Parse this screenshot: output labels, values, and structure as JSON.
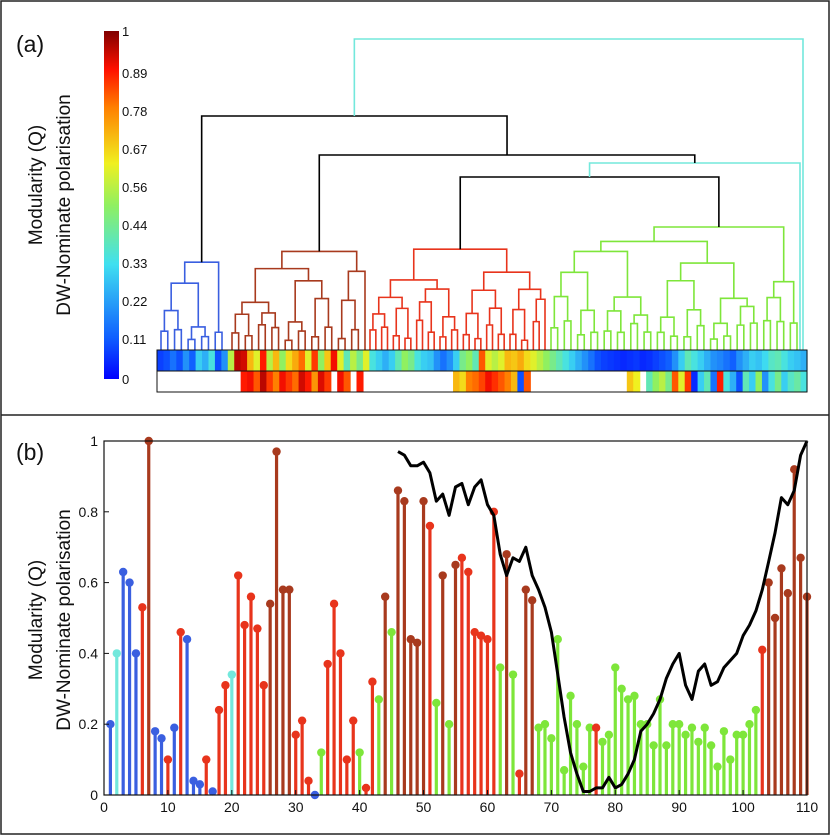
{
  "figure": {
    "panel_a_label": "(a)",
    "panel_b_label": "(b)"
  },
  "chart_data": [
    {
      "type": "heatmap",
      "title": "(a)",
      "ylabel_line1": "Modularity (Q)",
      "ylabel_line2": "DW-Nominate polarisation",
      "colorbar": {
        "min": 0,
        "max": 1,
        "ticks": [
          "0",
          "0.11",
          "0.22",
          "0.33",
          "0.44",
          "0.56",
          "0.67",
          "0.78",
          "0.89",
          "1"
        ]
      },
      "dendrogram_clusters": [
        {
          "name": "blue",
          "color": "#3a5fe0",
          "leaves": 10
        },
        {
          "name": "brown",
          "color": "#a83a1e",
          "leaves": 21
        },
        {
          "name": "red",
          "color": "#e8341c",
          "leaves": 31
        },
        {
          "name": "green",
          "color": "#7ee63a",
          "leaves": 38
        }
      ],
      "linkage_colors": {
        "top": "#73e8dc",
        "inner": "#000000"
      },
      "strip_modularity": [
        0.08,
        0.1,
        0.15,
        0.1,
        0.2,
        0.12,
        0.3,
        0.25,
        0.35,
        0.1,
        0.2,
        0.55,
        0.95,
        0.93,
        0.7,
        0.6,
        0.88,
        0.55,
        0.7,
        0.5,
        0.65,
        0.72,
        0.8,
        0.6,
        0.85,
        0.5,
        0.68,
        0.9,
        0.6,
        0.4,
        0.55,
        0.45,
        0.6,
        0.35,
        0.3,
        0.25,
        0.3,
        0.4,
        0.5,
        0.45,
        0.35,
        0.3,
        0.28,
        0.2,
        0.15,
        0.2,
        0.3,
        0.45,
        0.5,
        0.4,
        0.82,
        0.6,
        0.55,
        0.6,
        0.7,
        0.68,
        0.72,
        0.65,
        0.6,
        0.55,
        0.5,
        0.45,
        0.4,
        0.35,
        0.3,
        0.25,
        0.2,
        0.15,
        0.1,
        0.08,
        0.07,
        0.06,
        0.05,
        0.06,
        0.07,
        0.05,
        0.06,
        0.08,
        0.1,
        0.12,
        0.2,
        0.3,
        0.4,
        0.35,
        0.3,
        0.25,
        0.2,
        0.18,
        0.15,
        0.12,
        0.2,
        0.25,
        0.3,
        0.28,
        0.32,
        0.38,
        0.4,
        0.35,
        0.3,
        0.28,
        0.25
      ],
      "strip_polarisation": [
        null,
        null,
        null,
        null,
        null,
        null,
        null,
        null,
        null,
        null,
        null,
        null,
        null,
        0.88,
        0.9,
        0.82,
        0.95,
        0.85,
        0.78,
        0.9,
        0.85,
        0.8,
        0.93,
        0.88,
        0.75,
        0.92,
        0.85,
        null,
        0.9,
        0.82,
        null,
        0.88,
        null,
        null,
        null,
        null,
        null,
        null,
        null,
        null,
        null,
        null,
        null,
        null,
        null,
        null,
        0.7,
        0.65,
        0.78,
        0.8,
        0.84,
        0.9,
        0.86,
        0.82,
        0.78,
        0.7,
        0.1,
        0.82,
        null,
        null,
        null,
        null,
        null,
        null,
        null,
        null,
        null,
        null,
        null,
        null,
        null,
        null,
        null,
        0.68,
        0.62,
        null,
        0.4,
        0.5,
        0.55,
        0.45,
        0.82,
        0.6,
        0.85,
        0.05,
        0.3,
        0.4,
        0.15,
        0.88,
        0.35,
        0.25,
        0.1,
        0.4,
        0.3,
        0.5,
        0.2,
        0.35,
        0.45,
        0.3,
        0.38,
        0.42,
        0.35
      ]
    },
    {
      "type": "bar",
      "subtype": "stem",
      "title": "(b)",
      "ylabel_line1": "Modularity (Q)",
      "ylabel_line2": "DW-Nominate polarisation",
      "xlim": [
        0,
        110
      ],
      "ylim": [
        0,
        1
      ],
      "xticks": [
        "0",
        "10",
        "20",
        "30",
        "40",
        "50",
        "60",
        "70",
        "80",
        "90",
        "100",
        "110"
      ],
      "yticks": [
        "0",
        "0.2",
        "0.4",
        "0.6",
        "0.8",
        "1"
      ],
      "stem_colors": {
        "blue": "#3a5fe0",
        "cyan": "#73e8dc",
        "red": "#e8341c",
        "brown": "#a83a1e",
        "green": "#7ee63a"
      },
      "stems": [
        {
          "x": 1,
          "y": 0.2,
          "c": "blue"
        },
        {
          "x": 2,
          "y": 0.4,
          "c": "cyan"
        },
        {
          "x": 3,
          "y": 0.63,
          "c": "blue"
        },
        {
          "x": 4,
          "y": 0.6,
          "c": "blue"
        },
        {
          "x": 5,
          "y": 0.4,
          "c": "blue"
        },
        {
          "x": 6,
          "y": 0.53,
          "c": "red"
        },
        {
          "x": 7,
          "y": 1.0,
          "c": "brown"
        },
        {
          "x": 8,
          "y": 0.18,
          "c": "blue"
        },
        {
          "x": 9,
          "y": 0.16,
          "c": "blue"
        },
        {
          "x": 10,
          "y": 0.1,
          "c": "red"
        },
        {
          "x": 11,
          "y": 0.19,
          "c": "blue"
        },
        {
          "x": 12,
          "y": 0.46,
          "c": "red"
        },
        {
          "x": 13,
          "y": 0.44,
          "c": "blue"
        },
        {
          "x": 14,
          "y": 0.04,
          "c": "blue"
        },
        {
          "x": 15,
          "y": 0.03,
          "c": "blue"
        },
        {
          "x": 16,
          "y": 0.1,
          "c": "red"
        },
        {
          "x": 17,
          "y": 0.01,
          "c": "blue"
        },
        {
          "x": 18,
          "y": 0.24,
          "c": "red"
        },
        {
          "x": 19,
          "y": 0.31,
          "c": "red"
        },
        {
          "x": 20,
          "y": 0.34,
          "c": "cyan"
        },
        {
          "x": 21,
          "y": 0.62,
          "c": "red"
        },
        {
          "x": 22,
          "y": 0.48,
          "c": "red"
        },
        {
          "x": 23,
          "y": 0.56,
          "c": "red"
        },
        {
          "x": 24,
          "y": 0.47,
          "c": "red"
        },
        {
          "x": 25,
          "y": 0.31,
          "c": "red"
        },
        {
          "x": 26,
          "y": 0.54,
          "c": "brown"
        },
        {
          "x": 27,
          "y": 0.97,
          "c": "brown"
        },
        {
          "x": 28,
          "y": 0.58,
          "c": "brown"
        },
        {
          "x": 29,
          "y": 0.58,
          "c": "brown"
        },
        {
          "x": 30,
          "y": 0.17,
          "c": "red"
        },
        {
          "x": 31,
          "y": 0.21,
          "c": "red"
        },
        {
          "x": 32,
          "y": 0.04,
          "c": "red"
        },
        {
          "x": 33,
          "y": 0.0,
          "c": "blue"
        },
        {
          "x": 34,
          "y": 0.12,
          "c": "green"
        },
        {
          "x": 35,
          "y": 0.37,
          "c": "red"
        },
        {
          "x": 36,
          "y": 0.54,
          "c": "red"
        },
        {
          "x": 37,
          "y": 0.4,
          "c": "red"
        },
        {
          "x": 38,
          "y": 0.1,
          "c": "red"
        },
        {
          "x": 39,
          "y": 0.21,
          "c": "red"
        },
        {
          "x": 40,
          "y": 0.12,
          "c": "green"
        },
        {
          "x": 41,
          "y": 0.02,
          "c": "red"
        },
        {
          "x": 42,
          "y": 0.32,
          "c": "red"
        },
        {
          "x": 43,
          "y": 0.27,
          "c": "green"
        },
        {
          "x": 44,
          "y": 0.56,
          "c": "brown"
        },
        {
          "x": 45,
          "y": 0.46,
          "c": "green"
        },
        {
          "x": 46,
          "y": 0.86,
          "c": "brown"
        },
        {
          "x": 47,
          "y": 0.83,
          "c": "brown"
        },
        {
          "x": 48,
          "y": 0.44,
          "c": "brown"
        },
        {
          "x": 49,
          "y": 0.43,
          "c": "brown"
        },
        {
          "x": 50,
          "y": 0.83,
          "c": "brown"
        },
        {
          "x": 51,
          "y": 0.76,
          "c": "red"
        },
        {
          "x": 52,
          "y": 0.26,
          "c": "green"
        },
        {
          "x": 53,
          "y": 0.62,
          "c": "brown"
        },
        {
          "x": 54,
          "y": 0.2,
          "c": "green"
        },
        {
          "x": 55,
          "y": 0.65,
          "c": "brown"
        },
        {
          "x": 56,
          "y": 0.67,
          "c": "red"
        },
        {
          "x": 57,
          "y": 0.63,
          "c": "red"
        },
        {
          "x": 58,
          "y": 0.46,
          "c": "red"
        },
        {
          "x": 59,
          "y": 0.45,
          "c": "red"
        },
        {
          "x": 60,
          "y": 0.44,
          "c": "red"
        },
        {
          "x": 61,
          "y": 0.8,
          "c": "red"
        },
        {
          "x": 62,
          "y": 0.36,
          "c": "green"
        },
        {
          "x": 63,
          "y": 0.68,
          "c": "brown"
        },
        {
          "x": 64,
          "y": 0.34,
          "c": "green"
        },
        {
          "x": 65,
          "y": 0.06,
          "c": "red"
        },
        {
          "x": 66,
          "y": 0.58,
          "c": "brown"
        },
        {
          "x": 67,
          "y": 0.55,
          "c": "brown"
        },
        {
          "x": 68,
          "y": 0.19,
          "c": "green"
        },
        {
          "x": 69,
          "y": 0.2,
          "c": "green"
        },
        {
          "x": 70,
          "y": 0.16,
          "c": "green"
        },
        {
          "x": 71,
          "y": 0.44,
          "c": "green"
        },
        {
          "x": 72,
          "y": 0.07,
          "c": "green"
        },
        {
          "x": 73,
          "y": 0.28,
          "c": "green"
        },
        {
          "x": 74,
          "y": 0.2,
          "c": "green"
        },
        {
          "x": 75,
          "y": 0.08,
          "c": "green"
        },
        {
          "x": 76,
          "y": 0.19,
          "c": "green"
        },
        {
          "x": 77,
          "y": 0.19,
          "c": "red"
        },
        {
          "x": 78,
          "y": 0.15,
          "c": "green"
        },
        {
          "x": 79,
          "y": 0.17,
          "c": "green"
        },
        {
          "x": 80,
          "y": 0.36,
          "c": "green"
        },
        {
          "x": 81,
          "y": 0.3,
          "c": "green"
        },
        {
          "x": 82,
          "y": 0.27,
          "c": "green"
        },
        {
          "x": 83,
          "y": 0.28,
          "c": "green"
        },
        {
          "x": 84,
          "y": 0.2,
          "c": "green"
        },
        {
          "x": 85,
          "y": 0.2,
          "c": "green"
        },
        {
          "x": 86,
          "y": 0.14,
          "c": "green"
        },
        {
          "x": 87,
          "y": 0.27,
          "c": "green"
        },
        {
          "x": 88,
          "y": 0.14,
          "c": "green"
        },
        {
          "x": 89,
          "y": 0.2,
          "c": "green"
        },
        {
          "x": 90,
          "y": 0.2,
          "c": "green"
        },
        {
          "x": 91,
          "y": 0.17,
          "c": "green"
        },
        {
          "x": 92,
          "y": 0.19,
          "c": "green"
        },
        {
          "x": 93,
          "y": 0.15,
          "c": "green"
        },
        {
          "x": 94,
          "y": 0.19,
          "c": "green"
        },
        {
          "x": 95,
          "y": 0.14,
          "c": "green"
        },
        {
          "x": 96,
          "y": 0.08,
          "c": "green"
        },
        {
          "x": 97,
          "y": 0.18,
          "c": "green"
        },
        {
          "x": 98,
          "y": 0.1,
          "c": "green"
        },
        {
          "x": 99,
          "y": 0.17,
          "c": "green"
        },
        {
          "x": 100,
          "y": 0.17,
          "c": "green"
        },
        {
          "x": 101,
          "y": 0.2,
          "c": "green"
        },
        {
          "x": 102,
          "y": 0.24,
          "c": "green"
        },
        {
          "x": 103,
          "y": 0.41,
          "c": "red"
        },
        {
          "x": 104,
          "y": 0.6,
          "c": "brown"
        },
        {
          "x": 105,
          "y": 0.5,
          "c": "brown"
        },
        {
          "x": 106,
          "y": 0.64,
          "c": "brown"
        },
        {
          "x": 107,
          "y": 0.57,
          "c": "brown"
        },
        {
          "x": 108,
          "y": 0.92,
          "c": "brown"
        },
        {
          "x": 109,
          "y": 0.67,
          "c": "brown"
        },
        {
          "x": 110,
          "y": 0.56,
          "c": "brown"
        }
      ],
      "series": [
        {
          "name": "DW-Nominate polarisation",
          "color": "#000000",
          "x": [
            46,
            47,
            48,
            49,
            50,
            51,
            52,
            53,
            54,
            55,
            56,
            57,
            58,
            59,
            60,
            61,
            62,
            63,
            64,
            65,
            66,
            67,
            68,
            69,
            70,
            71,
            72,
            73,
            74,
            75,
            76,
            77,
            78,
            79,
            80,
            81,
            82,
            83,
            84,
            85,
            86,
            87,
            88,
            89,
            90,
            91,
            92,
            93,
            94,
            95,
            96,
            97,
            98,
            99,
            100,
            101,
            102,
            103,
            104,
            105,
            106,
            107,
            108,
            109,
            110
          ],
          "values": [
            0.97,
            0.96,
            0.93,
            0.93,
            0.94,
            0.91,
            0.83,
            0.85,
            0.79,
            0.87,
            0.88,
            0.82,
            0.87,
            0.89,
            0.82,
            0.79,
            0.68,
            0.62,
            0.67,
            0.66,
            0.7,
            0.62,
            0.58,
            0.53,
            0.46,
            0.34,
            0.22,
            0.12,
            0.06,
            0.01,
            0.01,
            0.02,
            0.02,
            0.05,
            0.02,
            0.03,
            0.06,
            0.1,
            0.18,
            0.2,
            0.23,
            0.27,
            0.33,
            0.37,
            0.4,
            0.31,
            0.27,
            0.35,
            0.37,
            0.31,
            0.32,
            0.36,
            0.38,
            0.4,
            0.45,
            0.48,
            0.52,
            0.58,
            0.66,
            0.74,
            0.84,
            0.82,
            0.86,
            0.96,
            1.0
          ]
        }
      ]
    }
  ]
}
